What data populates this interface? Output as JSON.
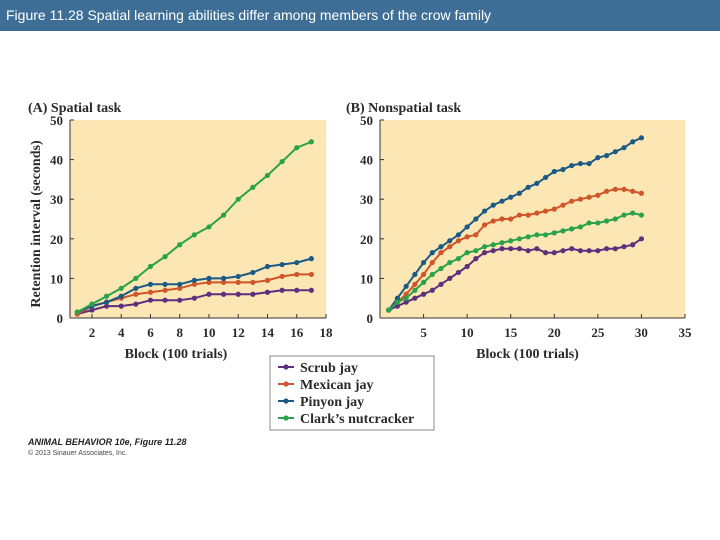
{
  "header": {
    "title": "Figure 11.28 Spatial learning abilities differ among members of the crow family"
  },
  "credit": {
    "line1": "ANIMAL BEHAVIOR 10e, Figure 11.28",
    "line2": "© 2013 Sinauer Associates, Inc."
  },
  "colors": {
    "background": "#fce6b4",
    "scrub": "#5e2f7d",
    "mexican": "#d0552a",
    "pinyon": "#1c5a86",
    "nutcracker": "#2aa24a"
  },
  "legend": [
    "Scrub jay",
    "Mexican jay",
    "Pinyon jay",
    "Clark’s nutcracker"
  ],
  "chart_data": [
    {
      "type": "line",
      "title": "(A) Spatial task",
      "xlabel": "Block (100 trials)",
      "ylabel": "Retention interval (seconds)",
      "xlim": [
        0.5,
        18
      ],
      "ylim": [
        0,
        50
      ],
      "xticks": [
        2,
        4,
        6,
        8,
        10,
        12,
        14,
        16,
        18
      ],
      "yticks": [
        0,
        10,
        20,
        30,
        40,
        50
      ],
      "series": [
        {
          "name": "Scrub jay",
          "x": [
            1,
            2,
            3,
            4,
            5,
            6,
            7,
            8,
            9,
            10,
            11,
            12,
            13,
            14,
            15,
            16,
            17
          ],
          "values": [
            1,
            2,
            3,
            3,
            3.5,
            4.5,
            4.5,
            4.5,
            5,
            6,
            6,
            6,
            6,
            6.5,
            7,
            7,
            7
          ]
        },
        {
          "name": "Mexican jay",
          "x": [
            1,
            2,
            3,
            4,
            5,
            6,
            7,
            8,
            9,
            10,
            11,
            12,
            13,
            14,
            15,
            16,
            17
          ],
          "values": [
            1,
            3,
            4,
            5,
            6,
            6.5,
            7,
            7.5,
            8.5,
            9,
            9,
            9,
            9,
            9.5,
            10.5,
            11,
            11
          ]
        },
        {
          "name": "Pinyon jay",
          "x": [
            1,
            2,
            3,
            4,
            5,
            6,
            7,
            8,
            9,
            10,
            11,
            12,
            13,
            14,
            15,
            16,
            17
          ],
          "values": [
            1.5,
            3,
            4,
            5.5,
            7.5,
            8.5,
            8.5,
            8.5,
            9.5,
            10,
            10,
            10.5,
            11.5,
            13,
            13.5,
            14,
            15
          ]
        },
        {
          "name": "Clark’s nutcracker",
          "x": [
            1,
            2,
            3,
            4,
            5,
            6,
            7,
            8,
            9,
            10,
            11,
            12,
            13,
            14,
            15,
            16,
            17
          ],
          "values": [
            1.5,
            3.5,
            5.5,
            7.5,
            10,
            13,
            15.5,
            18.5,
            21,
            23,
            26,
            30,
            33,
            36,
            39.5,
            43,
            44.5
          ]
        }
      ]
    },
    {
      "type": "line",
      "title": "(B) Nonspatial task",
      "xlabel": "Block (100 trials)",
      "ylabel": "",
      "xlim": [
        0,
        35
      ],
      "ylim": [
        0,
        50
      ],
      "xticks": [
        5,
        10,
        15,
        20,
        25,
        30,
        35
      ],
      "yticks": [
        0,
        10,
        20,
        30,
        40,
        50
      ],
      "series": [
        {
          "name": "Scrub jay",
          "x": [
            1,
            2,
            3,
            4,
            5,
            6,
            7,
            8,
            9,
            10,
            11,
            12,
            13,
            14,
            15,
            16,
            17,
            18,
            19,
            20,
            21,
            22,
            23,
            24,
            25,
            26,
            27,
            28,
            29,
            30
          ],
          "values": [
            2,
            3,
            4,
            5,
            6,
            7,
            8.5,
            10,
            11.5,
            13,
            15,
            16.5,
            17,
            17.5,
            17.5,
            17.5,
            17,
            17.5,
            16.5,
            16.5,
            17,
            17.5,
            17,
            17,
            17,
            17.5,
            17.5,
            18,
            18.5,
            20
          ]
        },
        {
          "name": "Mexican jay",
          "x": [
            1,
            2,
            3,
            4,
            5,
            6,
            7,
            8,
            9,
            10,
            11,
            12,
            13,
            14,
            15,
            16,
            17,
            18,
            19,
            20,
            21,
            22,
            23,
            24,
            25,
            26,
            27,
            28,
            29,
            30
          ],
          "values": [
            2,
            4,
            6,
            8.5,
            11,
            14,
            16.5,
            18,
            19.5,
            20.5,
            21,
            23.5,
            24.5,
            25,
            25,
            26,
            26,
            26.5,
            27,
            27.5,
            28.5,
            29.5,
            30,
            30.5,
            31,
            32,
            32.5,
            32.5,
            32,
            31.5
          ]
        },
        {
          "name": "Pinyon jay",
          "x": [
            1,
            2,
            3,
            4,
            5,
            6,
            7,
            8,
            9,
            10,
            11,
            12,
            13,
            14,
            15,
            16,
            17,
            18,
            19,
            20,
            21,
            22,
            23,
            24,
            25,
            26,
            27,
            28,
            29,
            30
          ],
          "values": [
            2,
            5,
            8,
            11,
            14,
            16.5,
            18,
            19.5,
            21,
            23,
            25,
            27,
            28.5,
            29.5,
            30.5,
            31.5,
            33,
            34,
            35.5,
            37,
            37.5,
            38.5,
            39,
            39,
            40.5,
            41,
            42,
            43,
            44.5,
            45.5
          ]
        },
        {
          "name": "Clark’s nutcracker",
          "x": [
            1,
            2,
            3,
            4,
            5,
            6,
            7,
            8,
            9,
            10,
            11,
            12,
            13,
            14,
            15,
            16,
            17,
            18,
            19,
            20,
            21,
            22,
            23,
            24,
            25,
            26,
            27,
            28,
            29,
            30
          ],
          "values": [
            2,
            4,
            5,
            7,
            9,
            11,
            12.5,
            14,
            15,
            16.5,
            17,
            18,
            18.5,
            19,
            19.5,
            20,
            20.5,
            21,
            21,
            21.5,
            22,
            22.5,
            23,
            24,
            24,
            24.5,
            25,
            26,
            26.5,
            26
          ]
        }
      ]
    }
  ]
}
